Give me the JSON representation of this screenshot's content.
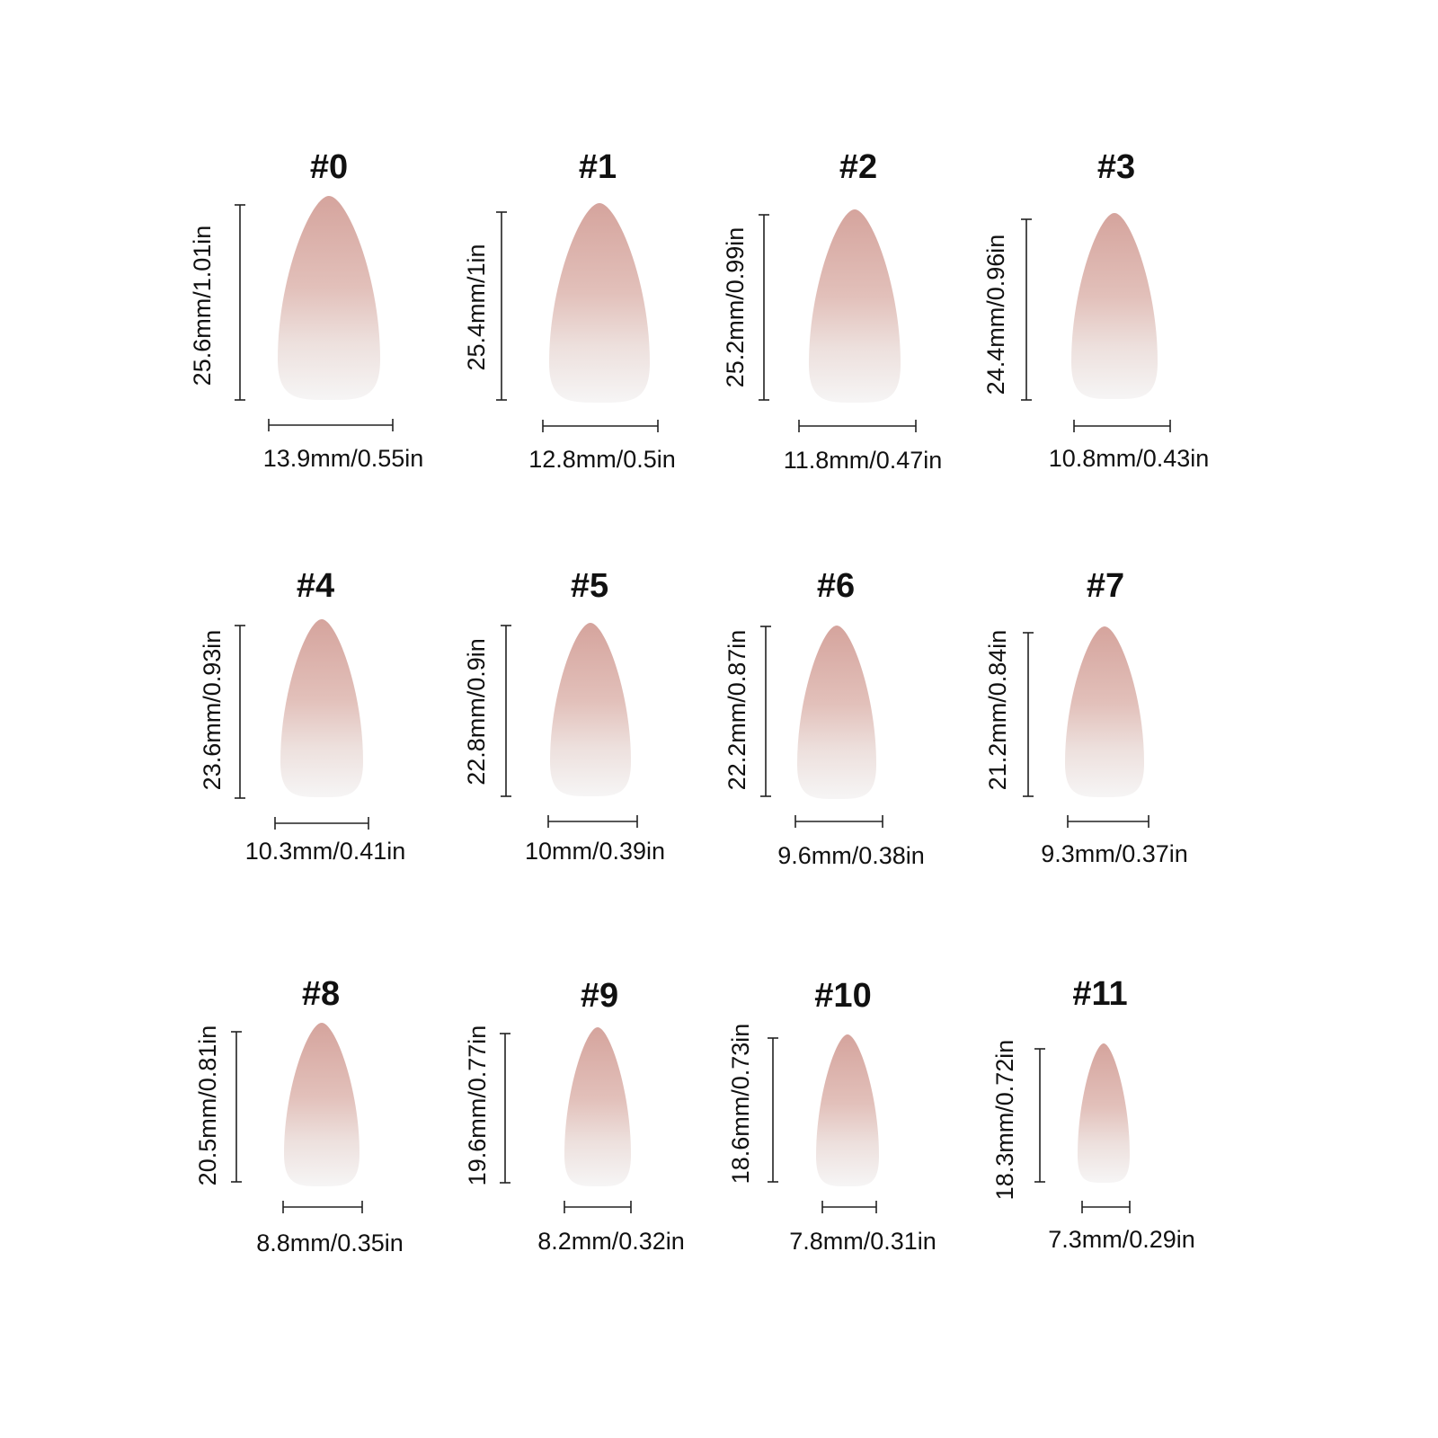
{
  "nails": [
    {
      "label": "#0",
      "height": "25.6mm/1.01in",
      "width": "13.9mm/0.55in"
    },
    {
      "label": "#1",
      "height": "25.4mm/1in",
      "width": "12.8mm/0.5in"
    },
    {
      "label": "#2",
      "height": "25.2mm/0.99in",
      "width": "11.8mm/0.47in"
    },
    {
      "label": "#3",
      "height": "24.4mm/0.96in",
      "width": "10.8mm/0.43in"
    },
    {
      "label": "#4",
      "height": "23.6mm/0.93in",
      "width": "10.3mm/0.41in"
    },
    {
      "label": "#5",
      "height": "22.8mm/0.9in",
      "width": "10mm/0.39in"
    },
    {
      "label": "#6",
      "height": "22.2mm/0.87in",
      "width": "9.6mm/0.38in"
    },
    {
      "label": "#7",
      "height": "21.2mm/0.84in",
      "width": "9.3mm/0.37in"
    },
    {
      "label": "#8",
      "height": "20.5mm/0.81in",
      "width": "8.8mm/0.35in"
    },
    {
      "label": "#9",
      "height": "19.6mm/0.77in",
      "width": "8.2mm/0.32in"
    },
    {
      "label": "#10",
      "height": "18.6mm/0.73in",
      "width": "7.8mm/0.31in"
    },
    {
      "label": "#11",
      "height": "18.3mm/0.72in",
      "width": "7.3mm/0.29in"
    }
  ]
}
